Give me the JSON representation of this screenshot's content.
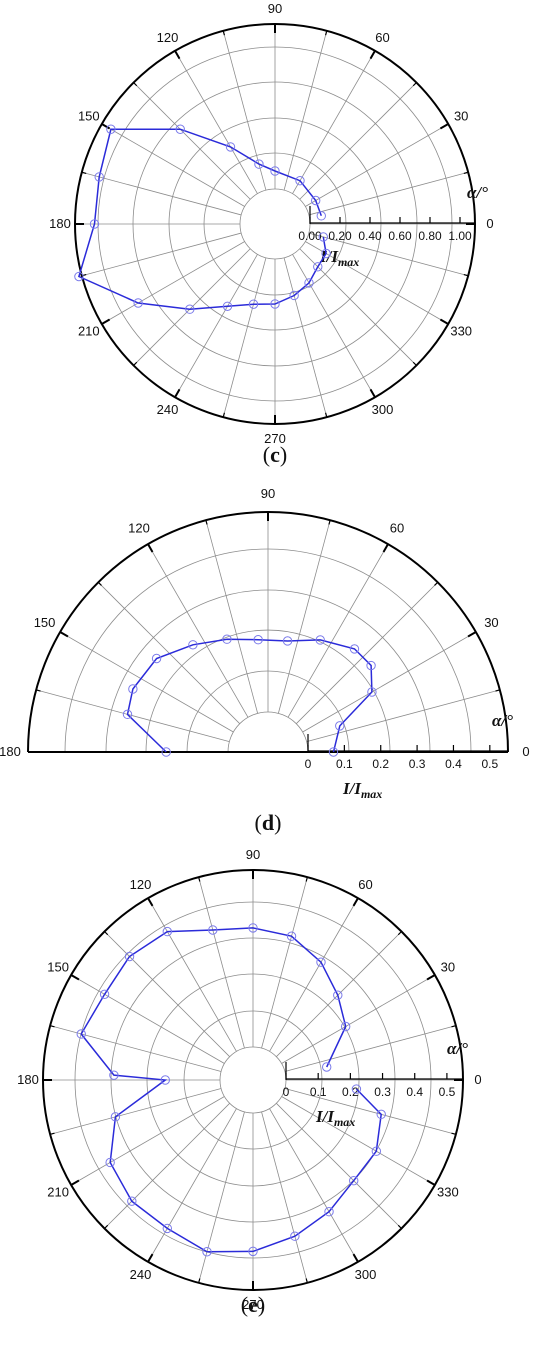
{
  "chart_data": [
    {
      "type": "polar-line",
      "panel_label": "c",
      "angle_label": "α/°",
      "radius_label": "I/I",
      "radius_label_sub": "max",
      "angle_ticks": [
        0,
        30,
        60,
        90,
        120,
        150,
        180,
        210,
        240,
        270,
        300,
        330
      ],
      "angle_range": [
        0,
        360
      ],
      "radius_ticks": [
        "0.00",
        "0.20",
        "0.40",
        "0.60",
        "0.80",
        "1.00"
      ],
      "rlim": [
        0,
        1.1
      ],
      "series": [
        {
          "color": "#2b2bd9",
          "points": [
            {
              "angle": 10,
              "r": 0.08
            },
            {
              "angle": 30,
              "r": 0.08
            },
            {
              "angle": 60,
              "r": 0.1
            },
            {
              "angle": 90,
              "r": 0.12
            },
            {
              "angle": 105,
              "r": 0.18
            },
            {
              "angle": 120,
              "r": 0.36
            },
            {
              "angle": 135,
              "r": 0.66
            },
            {
              "angle": 150,
              "r": 1.03
            },
            {
              "angle": 165,
              "r": 0.98
            },
            {
              "angle": 180,
              "r": 0.97
            },
            {
              "angle": 195,
              "r": 1.12
            },
            {
              "angle": 210,
              "r": 0.82
            },
            {
              "angle": 225,
              "r": 0.57
            },
            {
              "angle": 240,
              "r": 0.4
            },
            {
              "angle": 255,
              "r": 0.32
            },
            {
              "angle": 270,
              "r": 0.3
            },
            {
              "angle": 285,
              "r": 0.26
            },
            {
              "angle": 300,
              "r": 0.22
            },
            {
              "angle": 315,
              "r": 0.17
            },
            {
              "angle": 330,
              "r": 0.16
            },
            {
              "angle": 345,
              "r": 0.1
            }
          ]
        }
      ]
    },
    {
      "type": "polar-line",
      "panel_label": "d",
      "angle_label": "α/°",
      "radius_label": "I/I",
      "radius_label_sub": "max",
      "angle_ticks": [
        0,
        30,
        60,
        90,
        120,
        150,
        180
      ],
      "angle_range": [
        0,
        180
      ],
      "radius_ticks": [
        "0",
        "0.1",
        "0.2",
        "0.3",
        "0.4",
        "0.5"
      ],
      "rlim": [
        0,
        0.55
      ],
      "series": [
        {
          "color": "#2b2bd9",
          "points": [
            {
              "angle": 0,
              "r": 0.07
            },
            {
              "angle": 20,
              "r": 0.1
            },
            {
              "angle": 30,
              "r": 0.22
            },
            {
              "angle": 40,
              "r": 0.26
            },
            {
              "angle": 50,
              "r": 0.26
            },
            {
              "angle": 65,
              "r": 0.23
            },
            {
              "angle": 80,
              "r": 0.2
            },
            {
              "angle": 95,
              "r": 0.2
            },
            {
              "angle": 110,
              "r": 0.22
            },
            {
              "angle": 125,
              "r": 0.25
            },
            {
              "angle": 140,
              "r": 0.29
            },
            {
              "angle": 155,
              "r": 0.3
            },
            {
              "angle": 165,
              "r": 0.29
            },
            {
              "angle": 180,
              "r": 0.17
            }
          ]
        }
      ]
    },
    {
      "type": "polar-line",
      "panel_label": "e",
      "angle_label": "α/°",
      "radius_label": "I/I",
      "radius_label_sub": "max",
      "angle_ticks": [
        0,
        30,
        60,
        90,
        120,
        150,
        180,
        210,
        240,
        270,
        300,
        330
      ],
      "angle_range": [
        0,
        360
      ],
      "radius_ticks": [
        "0",
        "0.1",
        "0.2",
        "0.3",
        "0.4",
        "0.5"
      ],
      "rlim": [
        0,
        0.55
      ],
      "series": [
        {
          "color": "#2b2bd9",
          "points": [
            {
              "angle": 10,
              "r": 0.13
            },
            {
              "angle": 30,
              "r": 0.23
            },
            {
              "angle": 45,
              "r": 0.27
            },
            {
              "angle": 60,
              "r": 0.32
            },
            {
              "angle": 75,
              "r": 0.36
            },
            {
              "angle": 90,
              "r": 0.37
            },
            {
              "angle": 105,
              "r": 0.38
            },
            {
              "angle": 120,
              "r": 0.43
            },
            {
              "angle": 135,
              "r": 0.44
            },
            {
              "angle": 150,
              "r": 0.43
            },
            {
              "angle": 165,
              "r": 0.45
            },
            {
              "angle": 178,
              "r": 0.33
            },
            {
              "angle": 180,
              "r": 0.17
            },
            {
              "angle": 195,
              "r": 0.34
            },
            {
              "angle": 210,
              "r": 0.41
            },
            {
              "angle": 225,
              "r": 0.43
            },
            {
              "angle": 240,
              "r": 0.43
            },
            {
              "angle": 255,
              "r": 0.45
            },
            {
              "angle": 270,
              "r": 0.43
            },
            {
              "angle": 285,
              "r": 0.4
            },
            {
              "angle": 300,
              "r": 0.37
            },
            {
              "angle": 315,
              "r": 0.34
            },
            {
              "angle": 330,
              "r": 0.34
            },
            {
              "angle": 345,
              "r": 0.31
            },
            {
              "angle": 355,
              "r": 0.22
            }
          ]
        }
      ]
    }
  ]
}
